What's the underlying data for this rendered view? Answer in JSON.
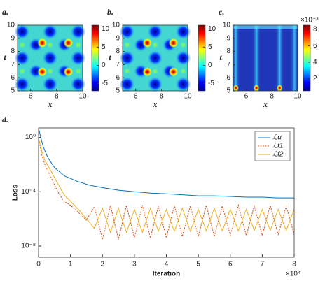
{
  "chart_data": [
    {
      "type": "heatmap",
      "label": "a.",
      "x_label": "x",
      "y_label": "t",
      "xlim": [
        5,
        10
      ],
      "ylim": [
        5,
        10
      ],
      "xticks": [
        6,
        8,
        10
      ],
      "yticks": [
        5,
        6,
        7,
        8,
        9,
        10
      ],
      "clim": [
        -7,
        11
      ],
      "cticks": [
        -5,
        0,
        5,
        10
      ]
    },
    {
      "type": "heatmap",
      "label": "b.",
      "x_label": "x",
      "y_label": "t",
      "xlim": [
        5,
        10
      ],
      "ylim": [
        5,
        10
      ],
      "xticks": [
        6,
        8,
        10
      ],
      "yticks": [
        5,
        6,
        7,
        8,
        9,
        10
      ],
      "clim": [
        -7,
        11
      ],
      "cticks": [
        -5,
        0,
        5,
        10
      ]
    },
    {
      "type": "heatmap",
      "label": "c.",
      "x_label": "x",
      "y_label": "t",
      "xlim": [
        5,
        10
      ],
      "ylim": [
        5,
        10
      ],
      "xticks": [
        6,
        8,
        10
      ],
      "yticks": [
        5,
        6,
        7,
        8,
        9,
        10
      ],
      "clim": [
        0.5,
        8.5
      ],
      "cticks": [
        2,
        4,
        6,
        8
      ],
      "cscale_label": "×10⁻³"
    },
    {
      "type": "line",
      "label": "d.",
      "x_label": "Iteration",
      "y_label": "Loss",
      "x_scale_label": "×10⁴",
      "log_y": true,
      "legend": "northeast",
      "xlim": [
        0,
        8
      ],
      "xticks": [
        0,
        1,
        2,
        3,
        4,
        5,
        6,
        7,
        8
      ],
      "ylim": [
        1.5e-09,
        5
      ],
      "yticks": [
        {
          "value": 1e-08,
          "label": "10⁻⁸"
        },
        {
          "value": 0.0001,
          "label": "10⁻⁴"
        },
        {
          "value": 1,
          "label": "10⁰"
        }
      ],
      "series": [
        {
          "name": "ℒu",
          "color": "#0072bd",
          "dash": false,
          "x": [
            0,
            0.05,
            0.15,
            0.3,
            0.5,
            0.8,
            1.2,
            1.6,
            2,
            2.5,
            3,
            3.5,
            4,
            4.5,
            5,
            5.5,
            6,
            6.5,
            7,
            7.5,
            8
          ],
          "values": [
            5,
            1.5,
            0.2,
            0.03,
            0.006,
            0.0015,
            0.0006,
            0.0003,
            0.0002,
            0.00013,
            0.0001,
            8e-05,
            7e-05,
            6e-05,
            5e-05,
            5e-05,
            4.5e-05,
            4e-05,
            4e-05,
            3.5e-05,
            3.5e-05
          ]
        },
        {
          "name": "ℒf1",
          "color": "#d95319",
          "dash": true,
          "x": [
            0,
            0.1,
            0.2,
            0.4,
            0.6,
            0.8,
            1.0,
            1.25,
            1.5,
            1.75,
            2,
            2.25,
            2.5,
            2.75,
            3,
            3.25,
            3.5,
            3.75,
            4,
            4.25,
            4.5,
            4.75,
            5,
            5.25,
            5.5,
            5.75,
            6,
            6.25,
            6.5,
            6.75,
            7,
            7.25,
            7.5,
            7.75,
            8
          ],
          "values": [
            1,
            0.05,
            0.01,
            0.001,
            0.0001,
            2e-05,
            1e-05,
            3e-06,
            8e-07,
            8e-06,
            3e-08,
            1e-05,
            3e-08,
            1e-05,
            4e-08,
            1e-05,
            4e-08,
            9e-06,
            4e-08,
            1e-05,
            5e-08,
            9e-06,
            5e-08,
            1e-05,
            5e-08,
            9e-06,
            6e-08,
            1e-05,
            6e-08,
            9e-06,
            6e-08,
            1e-05,
            7e-08,
            9e-06,
            7e-08
          ]
        },
        {
          "name": "ℒf2",
          "color": "#edb120",
          "dash": false,
          "x": [
            0,
            0.1,
            0.2,
            0.4,
            0.6,
            0.8,
            1.0,
            1.25,
            1.5,
            1.75,
            2,
            2.25,
            2.5,
            2.75,
            3,
            3.25,
            3.5,
            3.75,
            4,
            4.25,
            4.5,
            4.75,
            5,
            5.25,
            5.5,
            5.75,
            6,
            6.25,
            6.5,
            6.75,
            7,
            7.25,
            7.5,
            7.75,
            8
          ],
          "values": [
            1,
            0.1,
            0.02,
            0.003,
            0.0004,
            6e-05,
            2e-05,
            5e-06,
            1e-06,
            2e-07,
            6e-06,
            1e-07,
            6e-06,
            1e-07,
            5e-06,
            1e-07,
            6e-06,
            1.2e-07,
            5e-06,
            1.2e-07,
            6e-06,
            1.2e-07,
            5e-06,
            1.3e-07,
            6e-06,
            1.3e-07,
            5e-06,
            1.3e-07,
            5e-06,
            1.4e-07,
            5e-06,
            1.4e-07,
            5e-06,
            1.4e-07,
            5e-06
          ]
        }
      ]
    }
  ]
}
